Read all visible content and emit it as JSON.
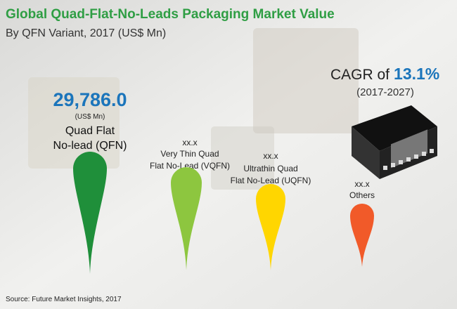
{
  "header": {
    "title": "Global Quad-Flat-No-Leads Packaging Market Value",
    "subtitle": "By QFN Variant, 2017 (US$ Mn)"
  },
  "cagr": {
    "prefix": "CAGR of",
    "value": "13.1%",
    "period": "(2017-2027)"
  },
  "items": [
    {
      "value": "29,786.0",
      "unit": "(US$ Mn)",
      "label_lines": [
        "Quad Flat",
        "No-lead (QFN)"
      ]
    },
    {
      "value": "xx.x",
      "label_lines": [
        "Very Thin Quad",
        "Flat No-Lead (VQFN)"
      ]
    },
    {
      "value": "xx.x",
      "label_lines": [
        "Ultrathin Quad",
        "Flat No-Lead (UQFN)"
      ]
    },
    {
      "value": "xx.x",
      "label_lines": [
        "Others"
      ]
    }
  ],
  "source": "Source: Future Market Insights, 2017"
}
